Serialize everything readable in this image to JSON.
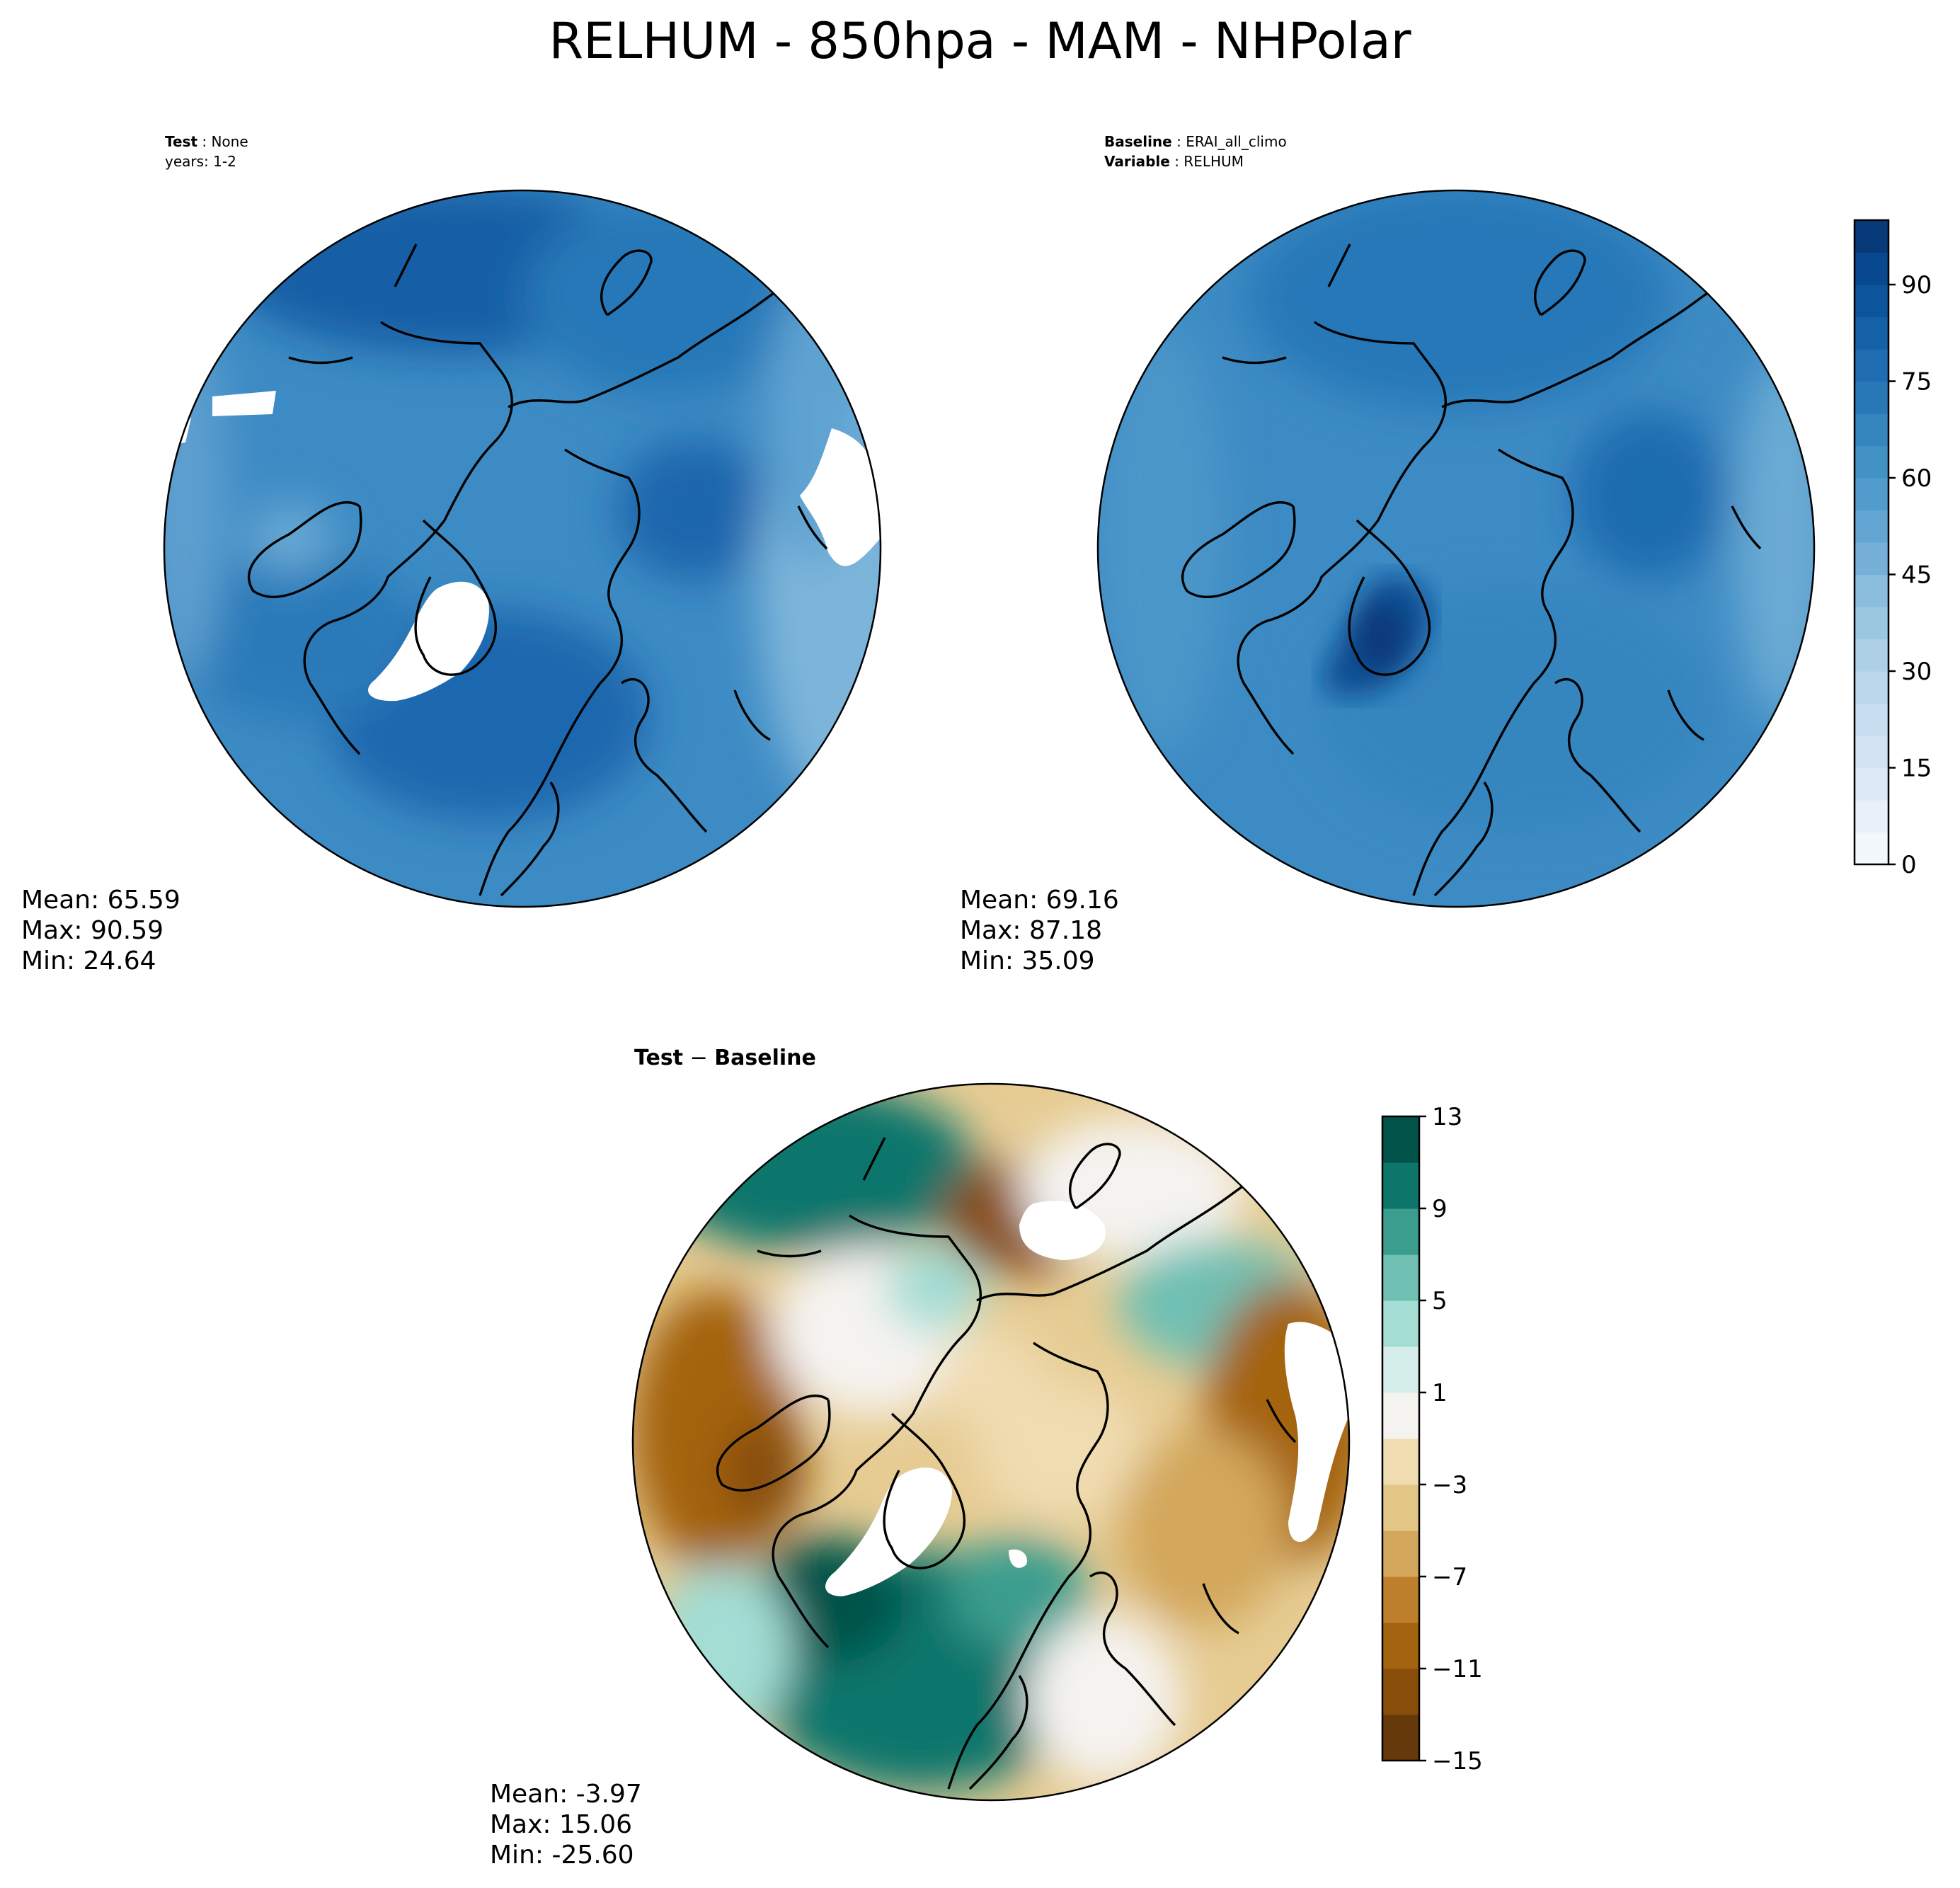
{
  "title": "RELHUM - 850hpa - MAM - NHPolar",
  "panels": [
    {
      "id": "test",
      "label_key": "Test",
      "label_value": "None",
      "label2": "years: 1-2",
      "stats": {
        "mean": "Mean: 65.59",
        "max": "Max: 90.59",
        "min": "Min: 24.64"
      }
    },
    {
      "id": "baseline",
      "label_key": "Baseline",
      "label_value": "ERAI_all_climo",
      "label2_key": "Variable",
      "label2_value": "RELHUM",
      "stats": {
        "mean": "Mean: 69.16",
        "max": "Max: 87.18",
        "min": "Min: 35.09"
      }
    },
    {
      "id": "diff",
      "label_key": "Test",
      "label_sep": "−",
      "label_value": "Baseline",
      "stats": {
        "mean": "Mean: -3.97",
        "max": "Max: 15.06",
        "min": "Min: -25.60"
      }
    }
  ],
  "colorbars": {
    "relhum": {
      "levels": [
        0,
        5,
        10,
        15,
        20,
        25,
        30,
        35,
        40,
        45,
        50,
        55,
        60,
        65,
        70,
        75,
        80,
        85,
        90,
        95,
        100
      ],
      "ticks": [
        0,
        15,
        30,
        45,
        60,
        75,
        90
      ],
      "tick_labels": [
        "0",
        "15",
        "30",
        "45",
        "60",
        "75",
        "90"
      ],
      "colors": [
        "#f3f8fd",
        "#e8f1fa",
        "#dde9f6",
        "#d3e3f3",
        "#c9ddf0",
        "#bcd7eb",
        "#add0e6",
        "#9cc7e1",
        "#8bbddc",
        "#76b0d8",
        "#63a6d3",
        "#519ccc",
        "#4292c6",
        "#3585bf",
        "#2878b8",
        "#1f6cb0",
        "#1561a7",
        "#0c559d",
        "#08488e",
        "#083a7a"
      ]
    },
    "diff": {
      "levels": [
        -15,
        -13,
        -11,
        -9,
        -7,
        -5,
        -3,
        -1,
        1,
        3,
        5,
        7,
        9,
        11,
        13
      ],
      "ticks": [
        -15,
        -11,
        -7,
        -3,
        1,
        5,
        9,
        13
      ],
      "tick_labels": [
        "−15",
        "−11",
        "−7",
        "−3",
        "1",
        "5",
        "9",
        "13"
      ],
      "colors": [
        "#66390a",
        "#884e0a",
        "#a4630f",
        "#bd7f2c",
        "#d3a75c",
        "#e2c686",
        "#f0dcb1",
        "#f5f3f0",
        "#d5eeea",
        "#a3ddd4",
        "#6fc0b3",
        "#3a9d8e",
        "#0f766c",
        "#02534a"
      ]
    }
  }
}
